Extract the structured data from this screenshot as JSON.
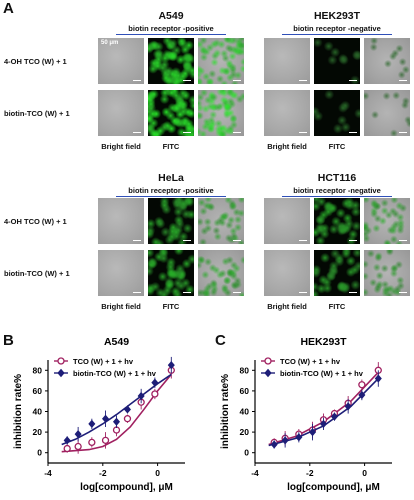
{
  "panel_labels": {
    "a": "A",
    "b": "B",
    "c": "C"
  },
  "microscopy": {
    "row_labels": [
      "4-OH TCO (W) + 1",
      "biotin-TCO (W) + 1"
    ],
    "column_labels": [
      "Bright field",
      "FITC"
    ],
    "scale_label": "50 μm",
    "panels": [
      {
        "title": "A549",
        "subtitle": "biotin receptor -positive",
        "fitc_levels": [
          0.9,
          1.0
        ]
      },
      {
        "title": "HEK293T",
        "subtitle": "biotin receptor -negative",
        "fitc_levels": [
          0.1,
          0.1
        ]
      },
      {
        "title": "HeLa",
        "subtitle": "biotin receptor -positive",
        "fitc_levels": [
          0.55,
          0.6
        ]
      },
      {
        "title": "HCT116",
        "subtitle": "biotin receptor -negative",
        "fitc_levels": [
          0.55,
          0.45
        ]
      }
    ]
  },
  "colors": {
    "series_tco": "#a02060",
    "series_biotin": "#1e1e78",
    "underline": "#2f4fb8"
  },
  "chart_data": [
    {
      "type": "scatter",
      "title": "A549",
      "xlabel": "log[compound], μM",
      "ylabel": "inhibition rate%",
      "xlim": [
        -4,
        1
      ],
      "ylim": [
        -10,
        90
      ],
      "xticks": [
        -4,
        -2,
        0
      ],
      "yticks": [
        0,
        20,
        40,
        60,
        80
      ],
      "legend_position": "top-left",
      "series": [
        {
          "name": "TCO (W) + 1 + hv",
          "marker": "circle",
          "x": [
            -3.3,
            -2.9,
            -2.4,
            -1.9,
            -1.5,
            -1.1,
            -0.6,
            -0.1,
            0.5
          ],
          "y": [
            4,
            6,
            10,
            12,
            22,
            33,
            49,
            57,
            80
          ],
          "fit": [
            [
              -3.5,
              1
            ],
            [
              -2.5,
              3
            ],
            [
              -2,
              6
            ],
            [
              -1.5,
              13
            ],
            [
              -1,
              25
            ],
            [
              -0.5,
              42
            ],
            [
              0,
              60
            ],
            [
              0.5,
              76
            ]
          ]
        },
        {
          "name": "biotin-TCO (W) + 1 + hv",
          "marker": "diamond",
          "x": [
            -3.3,
            -2.9,
            -2.4,
            -1.9,
            -1.5,
            -1.1,
            -0.6,
            -0.1,
            0.5
          ],
          "y": [
            12,
            18,
            28,
            33,
            30,
            42,
            55,
            68,
            85
          ],
          "fit": [
            [
              -3.5,
              8
            ],
            [
              -3,
              13
            ],
            [
              -2.5,
              20
            ],
            [
              -2,
              28
            ],
            [
              -1.5,
              37
            ],
            [
              -1,
              47
            ],
            [
              -0.5,
              57
            ],
            [
              0,
              67
            ],
            [
              0.5,
              76
            ]
          ]
        }
      ]
    },
    {
      "type": "scatter",
      "title": "HEK293T",
      "xlabel": "log[compound], μM",
      "ylabel": "inhibition rate%",
      "xlim": [
        -4,
        1
      ],
      "ylim": [
        -10,
        90
      ],
      "xticks": [
        -4,
        -2,
        0
      ],
      "yticks": [
        0,
        20,
        40,
        60,
        80
      ],
      "legend_position": "top-left",
      "series": [
        {
          "name": "TCO (W) + 1 + hv",
          "marker": "circle",
          "x": [
            -3.3,
            -2.9,
            -2.4,
            -1.9,
            -1.5,
            -1.1,
            -0.6,
            -0.1,
            0.5
          ],
          "y": [
            10,
            14,
            18,
            22,
            32,
            38,
            48,
            66,
            80
          ],
          "fit": [
            [
              -3.5,
              8
            ],
            [
              -2.5,
              16
            ],
            [
              -1.5,
              30
            ],
            [
              -0.5,
              50
            ],
            [
              0.5,
              78
            ]
          ]
        },
        {
          "name": "biotin-TCO (W) + 1 + hv",
          "marker": "diamond",
          "x": [
            -3.3,
            -2.9,
            -2.4,
            -1.9,
            -1.5,
            -1.1,
            -0.6,
            -0.1,
            0.5
          ],
          "y": [
            8,
            12,
            15,
            20,
            28,
            35,
            45,
            56,
            72
          ],
          "fit": [
            [
              -3.5,
              7
            ],
            [
              -2.5,
              14
            ],
            [
              -1.5,
              26
            ],
            [
              -0.5,
              45
            ],
            [
              0.5,
              72
            ]
          ]
        }
      ]
    }
  ]
}
